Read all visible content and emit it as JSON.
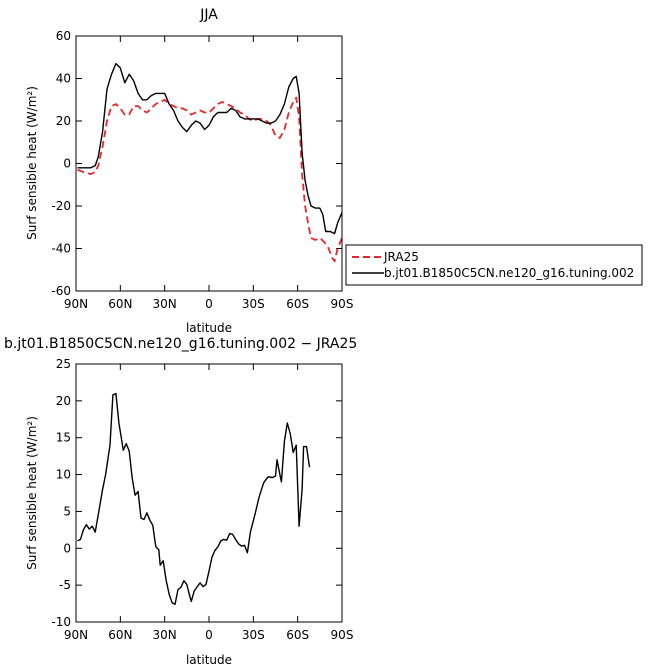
{
  "chart_data": [
    {
      "type": "line",
      "title": "JJA",
      "xlabel": "latitude",
      "ylabel": "Surf sensible heat (W/m²)",
      "xticks": [
        "90N",
        "60N",
        "30N",
        "0",
        "30S",
        "60S",
        "90S"
      ],
      "ylim": [
        -60,
        60
      ],
      "yticks": [
        -60,
        -40,
        -20,
        0,
        20,
        40,
        60
      ],
      "grid": false,
      "legend": "right",
      "series": [
        {
          "name": "JRA25",
          "color": "#e8262a",
          "dash": "dashed",
          "points": [
            [
              89,
              -3
            ],
            [
              85,
              -4
            ],
            [
              80,
              -5
            ],
            [
              77,
              -4
            ],
            [
              75,
              -1
            ],
            [
              72,
              8
            ],
            [
              69,
              20
            ],
            [
              66,
              27
            ],
            [
              63,
              28
            ],
            [
              60,
              26
            ],
            [
              57,
              23
            ],
            [
              54,
              23
            ],
            [
              51,
              27
            ],
            [
              48,
              27
            ],
            [
              45,
              25
            ],
            [
              42,
              24
            ],
            [
              39,
              26
            ],
            [
              36,
              28
            ],
            [
              33,
              29
            ],
            [
              30,
              30
            ],
            [
              27,
              28
            ],
            [
              24,
              27
            ],
            [
              21,
              26
            ],
            [
              18,
              26
            ],
            [
              15,
              25
            ],
            [
              12,
              23
            ],
            [
              9,
              24
            ],
            [
              6,
              25
            ],
            [
              3,
              24
            ],
            [
              0,
              24
            ],
            [
              -3,
              26
            ],
            [
              -6,
              28
            ],
            [
              -9,
              29
            ],
            [
              -12,
              28
            ],
            [
              -15,
              27
            ],
            [
              -18,
              26
            ],
            [
              -21,
              24
            ],
            [
              -24,
              23
            ],
            [
              -27,
              21
            ],
            [
              -30,
              20
            ],
            [
              -33,
              21
            ],
            [
              -36,
              21
            ],
            [
              -39,
              20
            ],
            [
              -42,
              18
            ],
            [
              -45,
              13
            ],
            [
              -48,
              12
            ],
            [
              -51,
              16
            ],
            [
              -54,
              24
            ],
            [
              -57,
              29
            ],
            [
              -59,
              31
            ],
            [
              -61,
              22
            ],
            [
              -63,
              -5
            ],
            [
              -65,
              -20
            ],
            [
              -67,
              -28
            ],
            [
              -69,
              -35
            ],
            [
              -72,
              -36
            ],
            [
              -75,
              -35
            ],
            [
              -78,
              -37
            ],
            [
              -81,
              -40
            ],
            [
              -83,
              -44
            ],
            [
              -85,
              -46
            ],
            [
              -87,
              -40
            ],
            [
              -90,
              -35
            ]
          ]
        },
        {
          "name": "b.jt01.B1850C5CN.ne120_g16.tuning.002",
          "color": "#000000",
          "dash": "solid",
          "points": [
            [
              89,
              -2
            ],
            [
              85,
              -2
            ],
            [
              80,
              -2
            ],
            [
              77,
              -1
            ],
            [
              75,
              3
            ],
            [
              72,
              15
            ],
            [
              69,
              35
            ],
            [
              66,
              42
            ],
            [
              63,
              47
            ],
            [
              60,
              45
            ],
            [
              57,
              38
            ],
            [
              54,
              42
            ],
            [
              51,
              39
            ],
            [
              48,
              33
            ],
            [
              45,
              30
            ],
            [
              42,
              30
            ],
            [
              39,
              32
            ],
            [
              36,
              33
            ],
            [
              33,
              33
            ],
            [
              30,
              33
            ],
            [
              27,
              28
            ],
            [
              24,
              25
            ],
            [
              21,
              20
            ],
            [
              18,
              17
            ],
            [
              15,
              15
            ],
            [
              12,
              18
            ],
            [
              9,
              20
            ],
            [
              6,
              19
            ],
            [
              3,
              16
            ],
            [
              0,
              18
            ],
            [
              -3,
              22
            ],
            [
              -6,
              24
            ],
            [
              -9,
              24
            ],
            [
              -12,
              24
            ],
            [
              -15,
              26
            ],
            [
              -18,
              25
            ],
            [
              -21,
              22
            ],
            [
              -24,
              21
            ],
            [
              -27,
              21
            ],
            [
              -30,
              21
            ],
            [
              -33,
              21
            ],
            [
              -36,
              20
            ],
            [
              -39,
              19
            ],
            [
              -42,
              19
            ],
            [
              -45,
              20
            ],
            [
              -48,
              23
            ],
            [
              -51,
              28
            ],
            [
              -54,
              36
            ],
            [
              -57,
              40
            ],
            [
              -59,
              41
            ],
            [
              -61,
              33
            ],
            [
              -63,
              5
            ],
            [
              -65,
              -8
            ],
            [
              -67,
              -15
            ],
            [
              -69,
              -20
            ],
            [
              -72,
              -21
            ],
            [
              -75,
              -21
            ],
            [
              -77,
              -24
            ],
            [
              -79,
              -32
            ],
            [
              -82,
              -32
            ],
            [
              -85,
              -33
            ],
            [
              -87,
              -28
            ],
            [
              -90,
              -23
            ]
          ]
        }
      ]
    },
    {
      "type": "line",
      "title": "b.jt01.B1850C5CN.ne120_g16.tuning.002 − JRA25",
      "xlabel": "latitude",
      "ylabel": "Surf sensible heat (W/m²)",
      "xticks": [
        "90N",
        "60N",
        "30N",
        "0",
        "30S",
        "60S",
        "90S"
      ],
      "ylim": [
        -10,
        25
      ],
      "yticks": [
        -10,
        -5,
        0,
        5,
        10,
        15,
        20,
        25
      ],
      "grid": false,
      "series": [
        {
          "color": "#000000",
          "dash": "solid",
          "points": [
            [
              89,
              1
            ],
            [
              87,
              1.2
            ],
            [
              85,
              2.5
            ],
            [
              83,
              3.2
            ],
            [
              81,
              2.6
            ],
            [
              79,
              3
            ],
            [
              77,
              2.2
            ],
            [
              75,
              4.5
            ],
            [
              72,
              8
            ],
            [
              70,
              10
            ],
            [
              67,
              14
            ],
            [
              65,
              20.8
            ],
            [
              63,
              21
            ],
            [
              61,
              17
            ],
            [
              58,
              13.3
            ],
            [
              56,
              14.2
            ],
            [
              54,
              13.2
            ],
            [
              52,
              9.5
            ],
            [
              50,
              7.2
            ],
            [
              48,
              7.7
            ],
            [
              46,
              4.1
            ],
            [
              44,
              3.9
            ],
            [
              42,
              4.8
            ],
            [
              40,
              3.8
            ],
            [
              38,
              3.1
            ],
            [
              36,
              0.2
            ],
            [
              34,
              -0.2
            ],
            [
              33,
              -2.3
            ],
            [
              31,
              -1.7
            ],
            [
              29,
              -4.3
            ],
            [
              27,
              -6.2
            ],
            [
              25,
              -7.4
            ],
            [
              23,
              -7.6
            ],
            [
              21,
              -5.6
            ],
            [
              19,
              -5.3
            ],
            [
              17,
              -4.4
            ],
            [
              15,
              -4.9
            ],
            [
              13,
              -6.5
            ],
            [
              12,
              -7.2
            ],
            [
              10,
              -5.8
            ],
            [
              8,
              -5.2
            ],
            [
              6,
              -4.7
            ],
            [
              4,
              -5.2
            ],
            [
              2,
              -4.9
            ],
            [
              0,
              -3.1
            ],
            [
              -2,
              -1.2
            ],
            [
              -4,
              -0.3
            ],
            [
              -6,
              0.2
            ],
            [
              -8,
              1
            ],
            [
              -10,
              1.2
            ],
            [
              -12,
              1.1
            ],
            [
              -14,
              2
            ],
            [
              -16,
              1.9
            ],
            [
              -18,
              1.2
            ],
            [
              -20,
              0.6
            ],
            [
              -22,
              0.3
            ],
            [
              -24,
              0.4
            ],
            [
              -26,
              -0.6
            ],
            [
              -28,
              2.2
            ],
            [
              -31,
              4.5
            ],
            [
              -34,
              7
            ],
            [
              -37,
              8.9
            ],
            [
              -40,
              9.7
            ],
            [
              -43,
              9.6
            ],
            [
              -45,
              9.8
            ],
            [
              -46,
              12
            ],
            [
              -48,
              10
            ],
            [
              -49,
              9
            ],
            [
              -51,
              14.5
            ],
            [
              -53,
              17
            ],
            [
              -55,
              15.5
            ],
            [
              -57,
              13
            ],
            [
              -59,
              14
            ],
            [
              -61,
              3
            ],
            [
              -63,
              8
            ],
            [
              -64,
              13.8
            ],
            [
              -66,
              13.8
            ],
            [
              -68,
              11
            ]
          ]
        }
      ]
    }
  ]
}
